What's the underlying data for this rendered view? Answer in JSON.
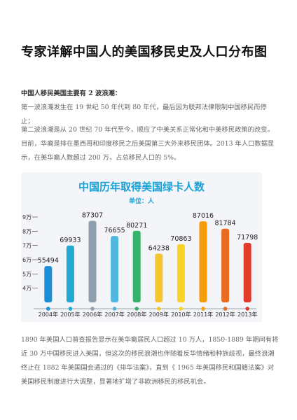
{
  "article": {
    "title": "专家详解中国人的美国移民史及人口分布图",
    "subheading": "中国人移民美国主要有 2 波浪潮：",
    "paragraph_1": "第一波浪潮发生在 19 世纪 50 年代到 80 年代，最后因为联邦法律限制中国移民而停止；",
    "paragraph_2": "第二波浪潮是从 20 世纪 70 年代至今，顺应了中美关系正常化和中美移民政策的改变。目前，华裔是排在墨西哥和印度移民之后美国第三大外来移民团体。2013 年人口数据显示，在美华裔人数超过 200 万，占总移民人口的 5%。",
    "paragraph_3": "1890 年美国人口普查报告显示在美华裔居民人口超过 10 万人，1850-1889 年期间有将近 30 万中国移民进入美国，但这次的移民浪潮也伴随着反华情绪和种族歧视，最终浪潮终止在 1882 年美国国会通过的《排华法案》，直到《 1965 年美国移民和国籍法案》对美国移民制度进行大调整，显著地扩增了非欧洲移民的移民机会。"
  },
  "chart_data": {
    "type": "bar",
    "title": "中国历年取得美国绿卡人数",
    "unit_label": "单位：人",
    "categories": [
      "2004年",
      "2005年",
      "2006年",
      "2007年",
      "2008年",
      "2009年",
      "2010年",
      "2011年",
      "2012年",
      "2013年"
    ],
    "values": [
      55494,
      69933,
      87307,
      76655,
      80271,
      64238,
      70863,
      87016,
      81784,
      71798
    ],
    "value_labels": [
      "55494",
      "69933",
      "87307",
      "76655",
      "80271",
      "64238",
      "70863",
      "87016",
      "81784",
      "71798"
    ],
    "y_ticks": [
      40000,
      50000,
      60000,
      70000,
      80000,
      90000
    ],
    "y_tick_labels": [
      "4万",
      "5万",
      "6万",
      "7万",
      "8万",
      "9万"
    ],
    "ylim": [
      30000,
      90000
    ],
    "grid": false,
    "bar_colors": [
      "#1a8fd6",
      "#22a8d4",
      "#8e9fae",
      "#52b7e0",
      "#35b36a",
      "#f2c531",
      "#f6d326",
      "#f59e0b",
      "#ea6a1f",
      "#e23b2e"
    ],
    "dot_colors": [
      "#1a8fd6",
      "#22a8d4",
      "#8e9fae",
      "#52b7e0",
      "#35b36a",
      "#f2c531",
      "#f6d326",
      "#f59e0b",
      "#ea6a1f",
      "#e23b2e"
    ]
  }
}
